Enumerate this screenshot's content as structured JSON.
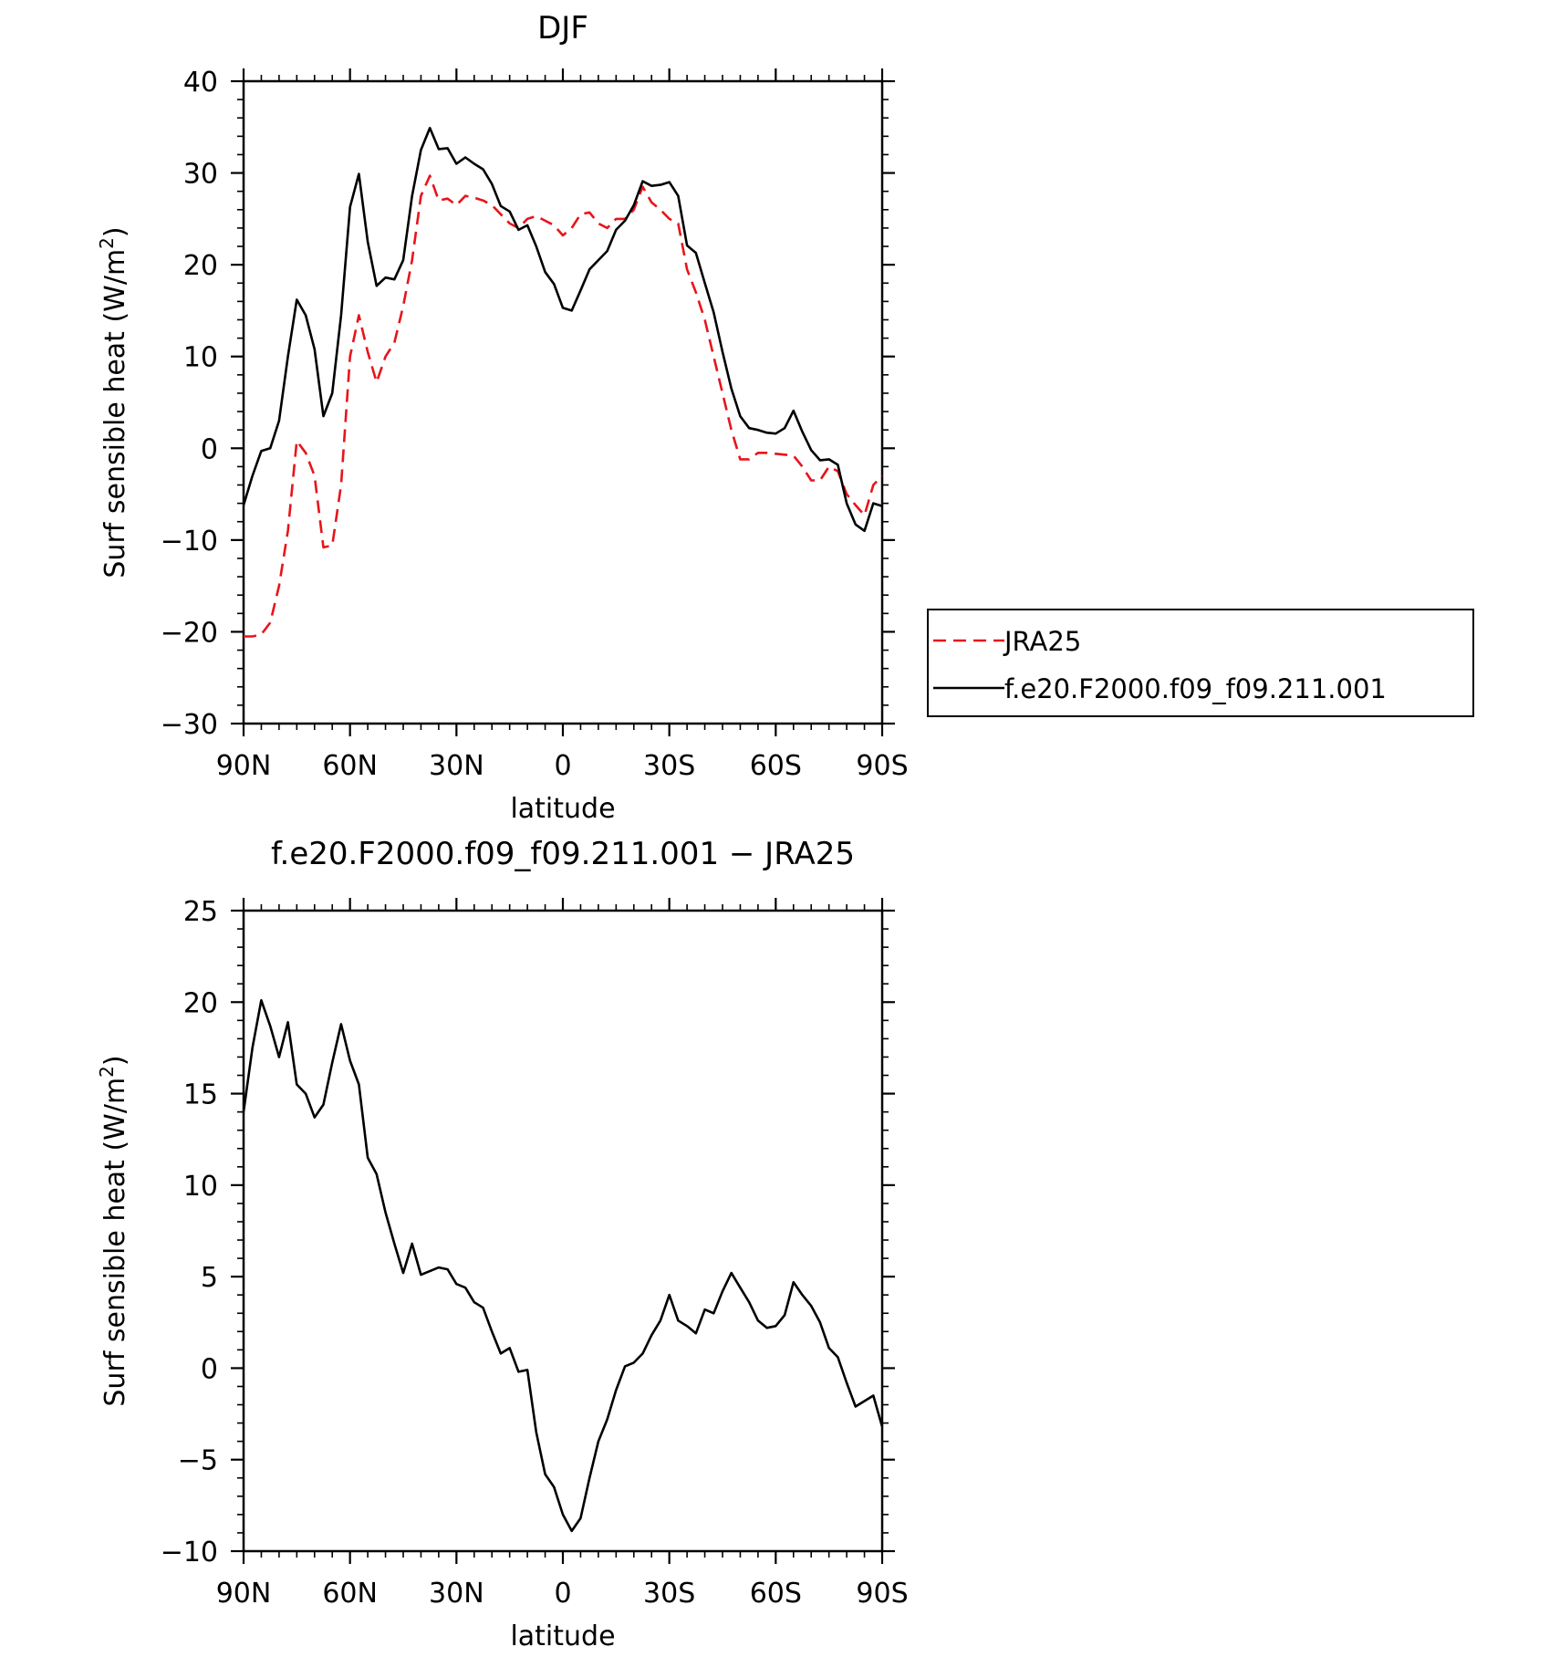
{
  "chart_data": [
    {
      "type": "line",
      "title": "DJF",
      "xlabel": "latitude",
      "ylabel": "Surf sensible heat (W/m",
      "ylabel_sup": "2",
      "ylabel_close": ")",
      "xlim": [
        90,
        -90
      ],
      "ylim": [
        -30,
        40
      ],
      "x_ticks": [
        90,
        60,
        30,
        0,
        -30,
        -60,
        -90
      ],
      "x_tick_labels": [
        "90N",
        "60N",
        "30N",
        "0",
        "30S",
        "60S",
        "90S"
      ],
      "y_ticks": [
        -30,
        -20,
        -10,
        0,
        10,
        20,
        30,
        40
      ],
      "y_tick_labels": [
        "−30",
        "−20",
        "−10",
        "0",
        "10",
        "20",
        "30",
        "40"
      ],
      "legend": {
        "placement": "right, outside plot"
      },
      "series": [
        {
          "name": "JRA25",
          "color": "#e8141b",
          "style": "dashed",
          "x": [
            90,
            87.5,
            85,
            82.5,
            80,
            77.5,
            75,
            72.5,
            70,
            67.5,
            65,
            62.5,
            60,
            57.5,
            55,
            52.5,
            50,
            47.5,
            45,
            42.5,
            40,
            37.5,
            35,
            32.5,
            30,
            27.5,
            25,
            22.5,
            20,
            17.5,
            15,
            12.5,
            10,
            7.5,
            5,
            2.5,
            0,
            -2.5,
            -5,
            -7.5,
            -10,
            -12.5,
            -15,
            -17.5,
            -20,
            -22.5,
            -25,
            -27.5,
            -30,
            -32.5,
            -35,
            -37.5,
            -40,
            -42.5,
            -45,
            -47.5,
            -50,
            -52.5,
            -55,
            -57.5,
            -60,
            -62.5,
            -65,
            -67.5,
            -70,
            -72.5,
            -75,
            -77.5,
            -80,
            -82.5,
            -85,
            -87.5,
            -90
          ],
          "y": [
            -20.5,
            -20.5,
            -20.3,
            -19,
            -15,
            -9,
            0.8,
            -0.5,
            -3,
            -10.8,
            -10.6,
            -4,
            10,
            14.5,
            10.5,
            7.2,
            10,
            11.5,
            15.5,
            20.5,
            27.5,
            29.7,
            27,
            27.2,
            26.5,
            27.5,
            27.3,
            27,
            26.5,
            25.5,
            24.5,
            24,
            25,
            25.3,
            24.8,
            24.3,
            23.2,
            24,
            25.5,
            25.7,
            24.5,
            24,
            25,
            25,
            26,
            28.5,
            26.8,
            26,
            25,
            24.5,
            19.5,
            17,
            14,
            10,
            6,
            2,
            -1.2,
            -1.2,
            -0.5,
            -0.5,
            -0.6,
            -0.7,
            -0.8,
            -2,
            -3.5,
            -3.5,
            -2,
            -2.5,
            -5,
            -6.2,
            -7.3,
            -4,
            -3
          ]
        },
        {
          "name": "f.e20.F2000.f09_f09.211.001",
          "color": "#000000",
          "style": "solid",
          "x": [
            90,
            87.5,
            85,
            82.5,
            80,
            77.5,
            75,
            72.5,
            70,
            67.5,
            65,
            62.5,
            60,
            57.5,
            55,
            52.5,
            50,
            47.5,
            45,
            42.5,
            40,
            37.5,
            35,
            32.5,
            30,
            27.5,
            25,
            22.5,
            20,
            17.5,
            15,
            12.5,
            10,
            7.5,
            5,
            2.5,
            0,
            -2.5,
            -5,
            -7.5,
            -10,
            -12.5,
            -15,
            -17.5,
            -20,
            -22.5,
            -25,
            -27.5,
            -30,
            -32.5,
            -35,
            -37.5,
            -40,
            -42.5,
            -45,
            -47.5,
            -50,
            -52.5,
            -55,
            -57.5,
            -60,
            -62.5,
            -65,
            -67.5,
            -70,
            -72.5,
            -75,
            -77.5,
            -80,
            -82.5,
            -85,
            -87.5,
            -90
          ],
          "y": [
            -6.2,
            -3,
            -0.3,
            0,
            3,
            10,
            16.2,
            14.5,
            10.8,
            3.5,
            6,
            14.5,
            26.3,
            29.9,
            22.5,
            17.7,
            18.6,
            18.4,
            20.5,
            27.5,
            32.5,
            34.9,
            32.6,
            32.7,
            31,
            31.7,
            31,
            30.4,
            28.8,
            26.4,
            25.8,
            23.8,
            24.3,
            22,
            19.2,
            17.9,
            15.3,
            15,
            17.2,
            19.5,
            20.5,
            21.5,
            23.8,
            24.8,
            26.5,
            29.1,
            28.6,
            28.7,
            29,
            27.5,
            22.1,
            21.3,
            18,
            14.8,
            10.5,
            6.5,
            3.5,
            2.2,
            2,
            1.7,
            1.6,
            2.2,
            4.1,
            1.8,
            -0.2,
            -1.3,
            -1.2,
            -1.8,
            -6,
            -8.3,
            -9,
            -6,
            -6.3
          ]
        }
      ]
    },
    {
      "type": "line",
      "title": "f.e20.F2000.f09_f09.211.001 − JRA25",
      "xlabel": "latitude",
      "ylabel": "Surf sensible heat (W/m",
      "ylabel_sup": "2",
      "ylabel_close": ")",
      "xlim": [
        90,
        -90
      ],
      "ylim": [
        -10,
        25
      ],
      "x_ticks": [
        90,
        60,
        30,
        0,
        -30,
        -60,
        -90
      ],
      "x_tick_labels": [
        "90N",
        "60N",
        "30N",
        "0",
        "30S",
        "60S",
        "90S"
      ],
      "y_ticks": [
        -10,
        -5,
        0,
        5,
        10,
        15,
        20,
        25
      ],
      "y_tick_labels": [
        "−10",
        "−5",
        "0",
        "5",
        "10",
        "15",
        "20",
        "25"
      ],
      "series": [
        {
          "color": "#000000",
          "style": "solid",
          "x": [
            90,
            87.5,
            85,
            82.5,
            80,
            77.5,
            75,
            72.5,
            70,
            67.5,
            65,
            62.5,
            60,
            57.5,
            55,
            52.5,
            50,
            47.5,
            45,
            42.5,
            40,
            37.5,
            35,
            32.5,
            30,
            27.5,
            25,
            22.5,
            20,
            17.5,
            15,
            12.5,
            10,
            7.5,
            5,
            2.5,
            0,
            -2.5,
            -5,
            -7.5,
            -10,
            -12.5,
            -15,
            -17.5,
            -20,
            -22.5,
            -25,
            -27.5,
            -30,
            -32.5,
            -35,
            -37.5,
            -40,
            -42.5,
            -45,
            -47.5,
            -50,
            -52.5,
            -55,
            -57.5,
            -60,
            -62.5,
            -65,
            -67.5,
            -70,
            -72.5,
            -75,
            -77.5,
            -80,
            -82.5,
            -85,
            -87.5,
            -90
          ],
          "y": [
            14,
            17.5,
            20.1,
            18.7,
            17,
            18.9,
            15.5,
            15,
            13.7,
            14.4,
            16.7,
            18.8,
            16.8,
            15.5,
            11.5,
            10.6,
            8.5,
            6.8,
            5.2,
            6.8,
            5.1,
            5.3,
            5.5,
            5.4,
            4.6,
            4.4,
            3.6,
            3.3,
            2.0,
            0.8,
            1.1,
            -0.2,
            -0.1,
            -3.5,
            -5.8,
            -6.5,
            -8.0,
            -8.9,
            -8.2,
            -6.0,
            -4.0,
            -2.8,
            -1.2,
            0.1,
            0.3,
            0.8,
            1.8,
            2.6,
            4.0,
            2.6,
            2.3,
            1.9,
            3.2,
            3.0,
            4.2,
            5.2,
            4.4,
            3.6,
            2.6,
            2.2,
            2.3,
            2.9,
            4.7,
            4.0,
            3.4,
            2.5,
            1.1,
            0.6,
            -0.8,
            -2.1,
            -1.8,
            -1.5,
            -3.2
          ]
        }
      ]
    }
  ]
}
